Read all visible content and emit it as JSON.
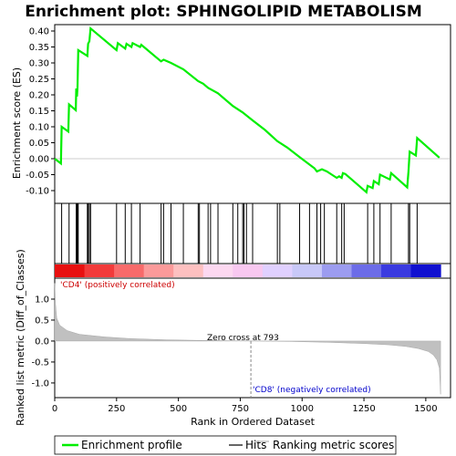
{
  "chart_data": {
    "type": "line",
    "title": "Enrichment plot: SPHINGOLIPID METABOLISM",
    "xlabel": "Rank in Ordered Dataset",
    "ylabel_top": "Enrichment score (ES)",
    "ylabel_bottom": "Ranked list metric (Diff_of_Classes)",
    "xlim": [
      0,
      1600
    ],
    "x_ticks": [
      0,
      250,
      500,
      750,
      1000,
      1250,
      1500
    ],
    "es_ylim": [
      -0.14,
      0.42
    ],
    "es_ticks": [
      -0.1,
      -0.05,
      0.0,
      0.05,
      0.1,
      0.15,
      0.2,
      0.25,
      0.3,
      0.35,
      0.4
    ],
    "metric_ylim": [
      -1.35,
      1.5
    ],
    "metric_ticks": [
      -1.0,
      -0.5,
      0.0,
      0.5,
      1.0
    ],
    "series": [
      {
        "name": "Enrichment profile",
        "color": "#00ee00",
        "points": [
          [
            0,
            0.0
          ],
          [
            25,
            -0.015
          ],
          [
            28,
            0.1
          ],
          [
            55,
            0.085
          ],
          [
            58,
            0.17
          ],
          [
            85,
            0.152
          ],
          [
            87,
            0.22
          ],
          [
            90,
            0.195
          ],
          [
            92,
            0.225
          ],
          [
            95,
            0.34
          ],
          [
            132,
            0.322
          ],
          [
            135,
            0.36
          ],
          [
            140,
            0.368
          ],
          [
            145,
            0.408
          ],
          [
            250,
            0.34
          ],
          [
            255,
            0.362
          ],
          [
            285,
            0.345
          ],
          [
            290,
            0.36
          ],
          [
            310,
            0.35
          ],
          [
            315,
            0.362
          ],
          [
            345,
            0.35
          ],
          [
            350,
            0.357
          ],
          [
            430,
            0.305
          ],
          [
            440,
            0.31
          ],
          [
            470,
            0.3
          ],
          [
            520,
            0.28
          ],
          [
            580,
            0.243
          ],
          [
            600,
            0.235
          ],
          [
            620,
            0.222
          ],
          [
            660,
            0.205
          ],
          [
            720,
            0.165
          ],
          [
            760,
            0.145
          ],
          [
            800,
            0.12
          ],
          [
            850,
            0.09
          ],
          [
            900,
            0.055
          ],
          [
            940,
            0.035
          ],
          [
            990,
            0.005
          ],
          [
            1050,
            -0.03
          ],
          [
            1060,
            -0.04
          ],
          [
            1080,
            -0.033
          ],
          [
            1100,
            -0.04
          ],
          [
            1120,
            -0.05
          ],
          [
            1140,
            -0.06
          ],
          [
            1150,
            -0.055
          ],
          [
            1160,
            -0.06
          ],
          [
            1165,
            -0.045
          ],
          [
            1175,
            -0.048
          ],
          [
            1260,
            -0.105
          ],
          [
            1265,
            -0.085
          ],
          [
            1285,
            -0.092
          ],
          [
            1290,
            -0.07
          ],
          [
            1310,
            -0.08
          ],
          [
            1315,
            -0.05
          ],
          [
            1355,
            -0.065
          ],
          [
            1360,
            -0.045
          ],
          [
            1425,
            -0.09
          ],
          [
            1430,
            -0.04
          ],
          [
            1435,
            0.022
          ],
          [
            1460,
            0.01
          ],
          [
            1465,
            0.065
          ],
          [
            1555,
            0.003
          ]
        ]
      }
    ],
    "hits": [
      28,
      58,
      87,
      90,
      92,
      95,
      132,
      135,
      140,
      145,
      250,
      285,
      310,
      345,
      430,
      440,
      470,
      520,
      580,
      585,
      620,
      630,
      660,
      720,
      740,
      760,
      765,
      775,
      800,
      900,
      910,
      990,
      1030,
      1060,
      1075,
      1090,
      1140,
      1160,
      1170,
      1265,
      1290,
      1315,
      1360,
      1430,
      1435,
      1465
    ],
    "heatmap_colors": [
      "#e81010",
      "#f23a3a",
      "#f86a6a",
      "#fb9a9a",
      "#fdc0c0",
      "#fcd8f0",
      "#f8c8f0",
      "#e0d0ff",
      "#c8c8f8",
      "#9c9cf0",
      "#6c6ce8",
      "#3a3ae0",
      "#1010d0"
    ],
    "metric_curve": [
      [
        0,
        1.38
      ],
      [
        3,
        0.9
      ],
      [
        8,
        0.55
      ],
      [
        20,
        0.38
      ],
      [
        50,
        0.25
      ],
      [
        100,
        0.16
      ],
      [
        200,
        0.1
      ],
      [
        300,
        0.06
      ],
      [
        450,
        0.03
      ],
      [
        600,
        0.015
      ],
      [
        793,
        0.0
      ],
      [
        950,
        -0.01
      ],
      [
        1100,
        -0.03
      ],
      [
        1250,
        -0.06
      ],
      [
        1350,
        -0.09
      ],
      [
        1420,
        -0.13
      ],
      [
        1470,
        -0.18
      ],
      [
        1510,
        -0.25
      ],
      [
        1530,
        -0.33
      ],
      [
        1545,
        -0.45
      ],
      [
        1555,
        -0.65
      ],
      [
        1560,
        -1.27
      ]
    ],
    "zero_cross_rank": 793,
    "annotations": {
      "zero_cross": "Zero cross at 793",
      "pos_label": "'CD4' (positively correlated)",
      "neg_label": "'CD8' (negatively correlated)"
    },
    "legend": {
      "placement": "bottom",
      "items": [
        {
          "label": "Enrichment profile",
          "color": "#00ee00",
          "style": "line"
        },
        {
          "label": "Hits",
          "color": "#000000",
          "style": "line"
        },
        {
          "label": "Ranking metric scores",
          "color": "#c0c0c0",
          "style": "line"
        }
      ]
    }
  }
}
